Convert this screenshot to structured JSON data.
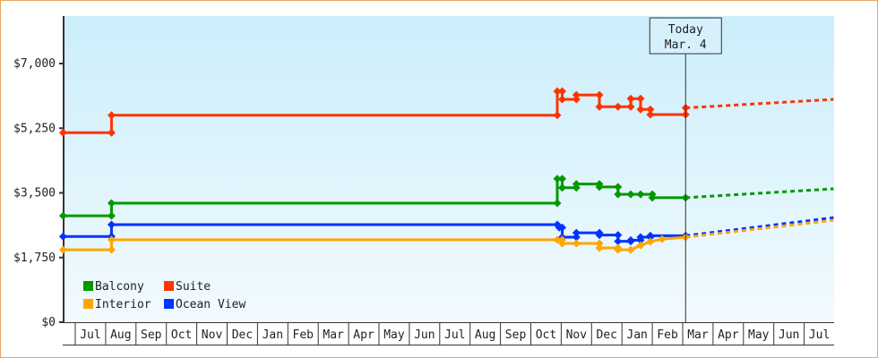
{
  "chart_data": {
    "type": "line",
    "title": "",
    "xlabel": "",
    "ylabel": "",
    "ylim": [
      0,
      7000
    ],
    "yticks": [
      0,
      1750,
      3500,
      5250,
      7000
    ],
    "ytick_labels": [
      "$0",
      "$1,750",
      "$3,500",
      "$5,250",
      "$7,000"
    ],
    "xlim": [
      "2015-06-19",
      "2017-07-31"
    ],
    "xtick_labels": [
      "Jul",
      "Aug",
      "Sep",
      "Oct",
      "Nov",
      "Dec",
      "Jan",
      "Feb",
      "Mar",
      "Apr",
      "May",
      "Jun",
      "Jul",
      "Aug",
      "Sep",
      "Oct",
      "Nov",
      "Dec",
      "Jan",
      "Feb",
      "Mar",
      "Apr",
      "May",
      "Jun",
      "Jul"
    ],
    "grid": false,
    "legend_position": "bottom-left",
    "annotation": {
      "line1": "Today",
      "line2": "Mar. 4",
      "date": "2017-03-04"
    },
    "series": [
      {
        "name": "Suite",
        "color": "#ff3300",
        "points": [
          [
            "2015-06-19",
            5130
          ],
          [
            "2015-08-07",
            5130
          ],
          [
            "2015-08-07",
            5600
          ],
          [
            "2016-10-28",
            5600
          ],
          [
            "2016-10-28",
            6250
          ],
          [
            "2016-11-02",
            6250
          ],
          [
            "2016-11-02",
            6030
          ],
          [
            "2016-11-16",
            6030
          ],
          [
            "2016-11-16",
            6150
          ],
          [
            "2016-12-09",
            6150
          ],
          [
            "2016-12-09",
            5830
          ],
          [
            "2016-12-28",
            5830
          ],
          [
            "2017-01-10",
            5830
          ],
          [
            "2017-01-10",
            6050
          ],
          [
            "2017-01-20",
            6050
          ],
          [
            "2017-01-20",
            5760
          ],
          [
            "2017-01-30",
            5760
          ],
          [
            "2017-01-30",
            5620
          ],
          [
            "2017-03-04",
            5620
          ],
          [
            "2017-03-04",
            5800
          ]
        ],
        "projection": [
          [
            "2017-03-04",
            5800
          ],
          [
            "2017-07-31",
            6030
          ]
        ]
      },
      {
        "name": "Balcony",
        "color": "#009900",
        "points": [
          [
            "2015-06-19",
            2880
          ],
          [
            "2015-08-07",
            2880
          ],
          [
            "2015-08-07",
            3220
          ],
          [
            "2016-10-28",
            3220
          ],
          [
            "2016-10-28",
            3880
          ],
          [
            "2016-11-02",
            3880
          ],
          [
            "2016-11-02",
            3640
          ],
          [
            "2016-11-16",
            3640
          ],
          [
            "2016-11-16",
            3740
          ],
          [
            "2016-12-09",
            3740
          ],
          [
            "2016-12-09",
            3660
          ],
          [
            "2016-12-28",
            3660
          ],
          [
            "2016-12-28",
            3460
          ],
          [
            "2017-01-10",
            3460
          ],
          [
            "2017-01-20",
            3460
          ],
          [
            "2017-02-01",
            3460
          ],
          [
            "2017-02-01",
            3370
          ],
          [
            "2017-03-04",
            3370
          ]
        ],
        "projection": [
          [
            "2017-03-04",
            3370
          ],
          [
            "2017-07-31",
            3610
          ]
        ]
      },
      {
        "name": "Ocean View",
        "color": "#0033ff",
        "points": [
          [
            "2015-06-19",
            2320
          ],
          [
            "2015-08-07",
            2320
          ],
          [
            "2015-08-07",
            2640
          ],
          [
            "2016-10-28",
            2640
          ],
          [
            "2016-10-30",
            2560
          ],
          [
            "2016-11-02",
            2560
          ],
          [
            "2016-11-02",
            2300
          ],
          [
            "2016-11-16",
            2300
          ],
          [
            "2016-11-16",
            2420
          ],
          [
            "2016-12-09",
            2420
          ],
          [
            "2016-12-09",
            2360
          ],
          [
            "2016-12-28",
            2360
          ],
          [
            "2016-12-28",
            2190
          ],
          [
            "2017-01-10",
            2190
          ],
          [
            "2017-01-10",
            2220
          ],
          [
            "2017-01-20",
            2220
          ],
          [
            "2017-01-20",
            2300
          ],
          [
            "2017-01-30",
            2300
          ],
          [
            "2017-01-30",
            2340
          ],
          [
            "2017-03-04",
            2340
          ]
        ],
        "projection": [
          [
            "2017-03-04",
            2340
          ],
          [
            "2017-07-31",
            2830
          ]
        ]
      },
      {
        "name": "Interior",
        "color": "#ffa500",
        "points": [
          [
            "2015-06-19",
            1960
          ],
          [
            "2015-08-07",
            1960
          ],
          [
            "2015-08-07",
            2230
          ],
          [
            "2016-10-28",
            2230
          ],
          [
            "2016-11-02",
            2230
          ],
          [
            "2016-11-02",
            2130
          ],
          [
            "2016-11-16",
            2130
          ],
          [
            "2016-12-09",
            2130
          ],
          [
            "2016-12-09",
            2010
          ],
          [
            "2016-12-28",
            2010
          ],
          [
            "2016-12-28",
            1960
          ],
          [
            "2017-01-10",
            1960
          ],
          [
            "2017-01-20",
            2080
          ],
          [
            "2017-01-30",
            2180
          ],
          [
            "2017-02-10",
            2250
          ],
          [
            "2017-03-04",
            2300
          ]
        ],
        "projection": [
          [
            "2017-03-04",
            2300
          ],
          [
            "2017-07-31",
            2760
          ]
        ]
      }
    ],
    "legend": [
      {
        "name": "Balcony",
        "color": "#009900"
      },
      {
        "name": "Suite",
        "color": "#ff3300"
      },
      {
        "name": "Interior",
        "color": "#ffa500"
      },
      {
        "name": "Ocean View",
        "color": "#0033ff"
      }
    ]
  }
}
